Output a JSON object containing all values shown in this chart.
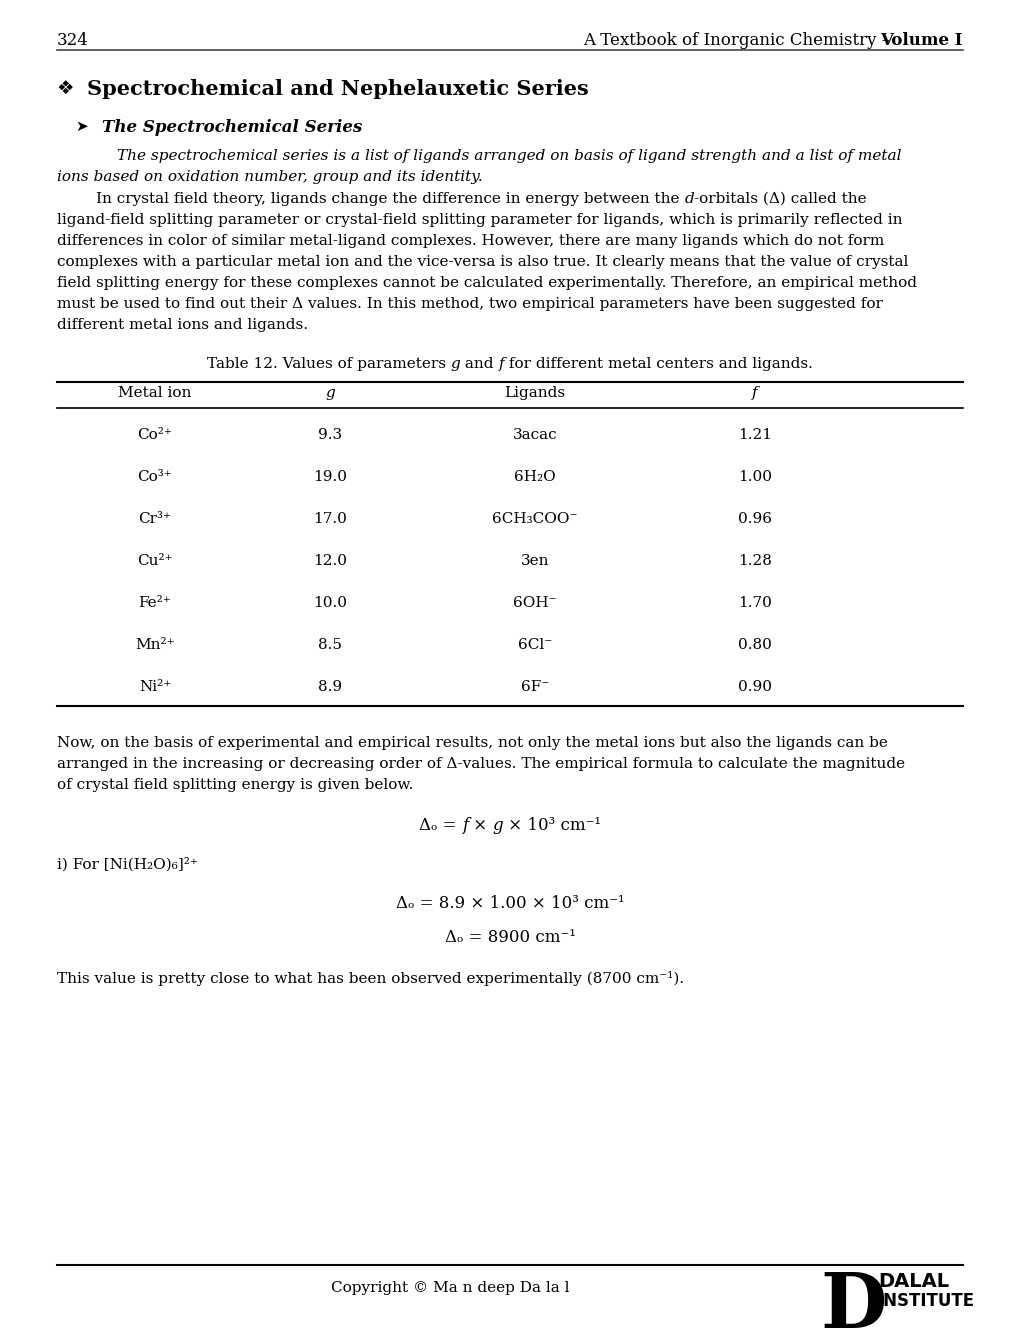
{
  "page_number": "324",
  "header_normal": "A Textbook of Inorganic Chemistry – ",
  "header_bold": "Volume I",
  "section_title": "Spectrochemical and Nephelauxetic Series",
  "subsection_title": "The Spectrochemical Series",
  "italic_line1": "The spectrochemical series is a list of ligands arranged on basis of ligand strength and a list of metal",
  "italic_line2": "ions based on oxidation number, group and its identity.",
  "body1_lines": [
    "        In crystal field theory, ligands change the difference in energy between the ",
    "-orbitals (Δ) called the",
    "ligand-field splitting parameter or crystal-field splitting parameter for ligands, which is primarily reflected in",
    "differences in color of similar metal-ligand complexes. However, there are many ligands which do not form",
    "complexes with a particular metal ion and the vice-versa is also true. It clearly means that the value of crystal",
    "field splitting energy for these complexes cannot be calculated experimentally. Therefore, an empirical method",
    "must be used to find out their Δ values. In this method, two empirical parameters have been suggested for",
    "different metal ions and ligands."
  ],
  "table_caption": "Table 12. Values of parameters g and f for different metal centers and ligands.",
  "table_headers": [
    "Metal ion",
    "g",
    "Ligands",
    "f"
  ],
  "table_rows": [
    [
      "Co²⁺",
      "9.3",
      "3acac",
      "1.21"
    ],
    [
      "Co³⁺",
      "19.0",
      "6H₂O",
      "1.00"
    ],
    [
      "Cr³⁺",
      "17.0",
      "6CH₃COO⁻",
      "0.96"
    ],
    [
      "Cu²⁺",
      "12.0",
      "3en",
      "1.28"
    ],
    [
      "Fe²⁺",
      "10.0",
      "6OH⁻",
      "1.70"
    ],
    [
      "Mn²⁺",
      "8.5",
      "6Cl⁻",
      "0.80"
    ],
    [
      "Ni²⁺",
      "8.9",
      "6F⁻",
      "0.90"
    ]
  ],
  "body2_lines": [
    "Now, on the basis of experimental and empirical results, not only the metal ions but also the ligands can be",
    "arranged in the increasing or decreasing order of Δ-values. The empirical formula to calculate the magnitude",
    "of crystal field splitting energy is given below."
  ],
  "copyright": "Copyright © Ma n deep Da la l",
  "bg_color": "#ffffff"
}
